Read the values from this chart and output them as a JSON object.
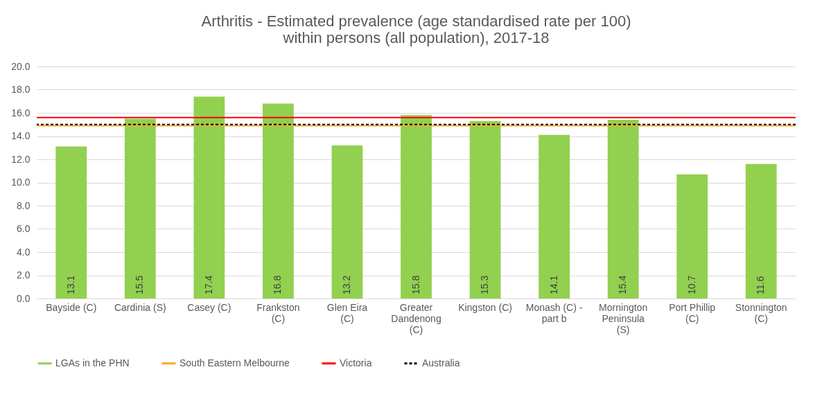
{
  "chart_data": {
    "type": "bar",
    "title": "Arthritis - Estimated prevalence (age standardised rate per 100) within persons (all population), 2017-18",
    "categories": [
      "Bayside (C)",
      "Cardinia (S)",
      "Casey (C)",
      "Frankston (C)",
      "Glen Eira (C)",
      "Greater Dandenong (C)",
      "Kingston (C)",
      "Monash (C) - part b",
      "Mornington Peninsula (S)",
      "Port Phillip (C)",
      "Stonnington (C)"
    ],
    "series": [
      {
        "name": "LGAs in the PHN",
        "color": "#92d050",
        "values": [
          13.1,
          15.5,
          17.4,
          16.8,
          13.2,
          15.8,
          15.3,
          14.1,
          15.4,
          10.7,
          11.6
        ]
      }
    ],
    "ref_lines": [
      {
        "axis": "y",
        "value": 14.9,
        "label": "South Eastern Melbourne",
        "color": "#ffa62b",
        "line_style": "solid"
      },
      {
        "axis": "y",
        "value": 15.6,
        "label": "Victoria",
        "color": "#ff0000",
        "line_style": "solid"
      },
      {
        "axis": "y",
        "value": 15.0,
        "label": "Australia",
        "color": "#000000",
        "line_style": "dashed"
      }
    ],
    "ylim": [
      0,
      20
    ],
    "yticks": [
      {
        "value": 0,
        "label": "0.0"
      },
      {
        "value": 2,
        "label": "2.0"
      },
      {
        "value": 4,
        "label": "4.0"
      },
      {
        "value": 6,
        "label": "6.0"
      },
      {
        "value": 8,
        "label": "8.0"
      },
      {
        "value": 10,
        "label": "10.0"
      },
      {
        "value": 12,
        "label": "12.0"
      },
      {
        "value": 14,
        "label": "14.0"
      },
      {
        "value": 16,
        "label": "16.0"
      },
      {
        "value": 18,
        "label": "18.0"
      },
      {
        "value": 20,
        "label": "20.0"
      }
    ],
    "grid": "y",
    "legend": "bottom",
    "data_labels": true
  }
}
